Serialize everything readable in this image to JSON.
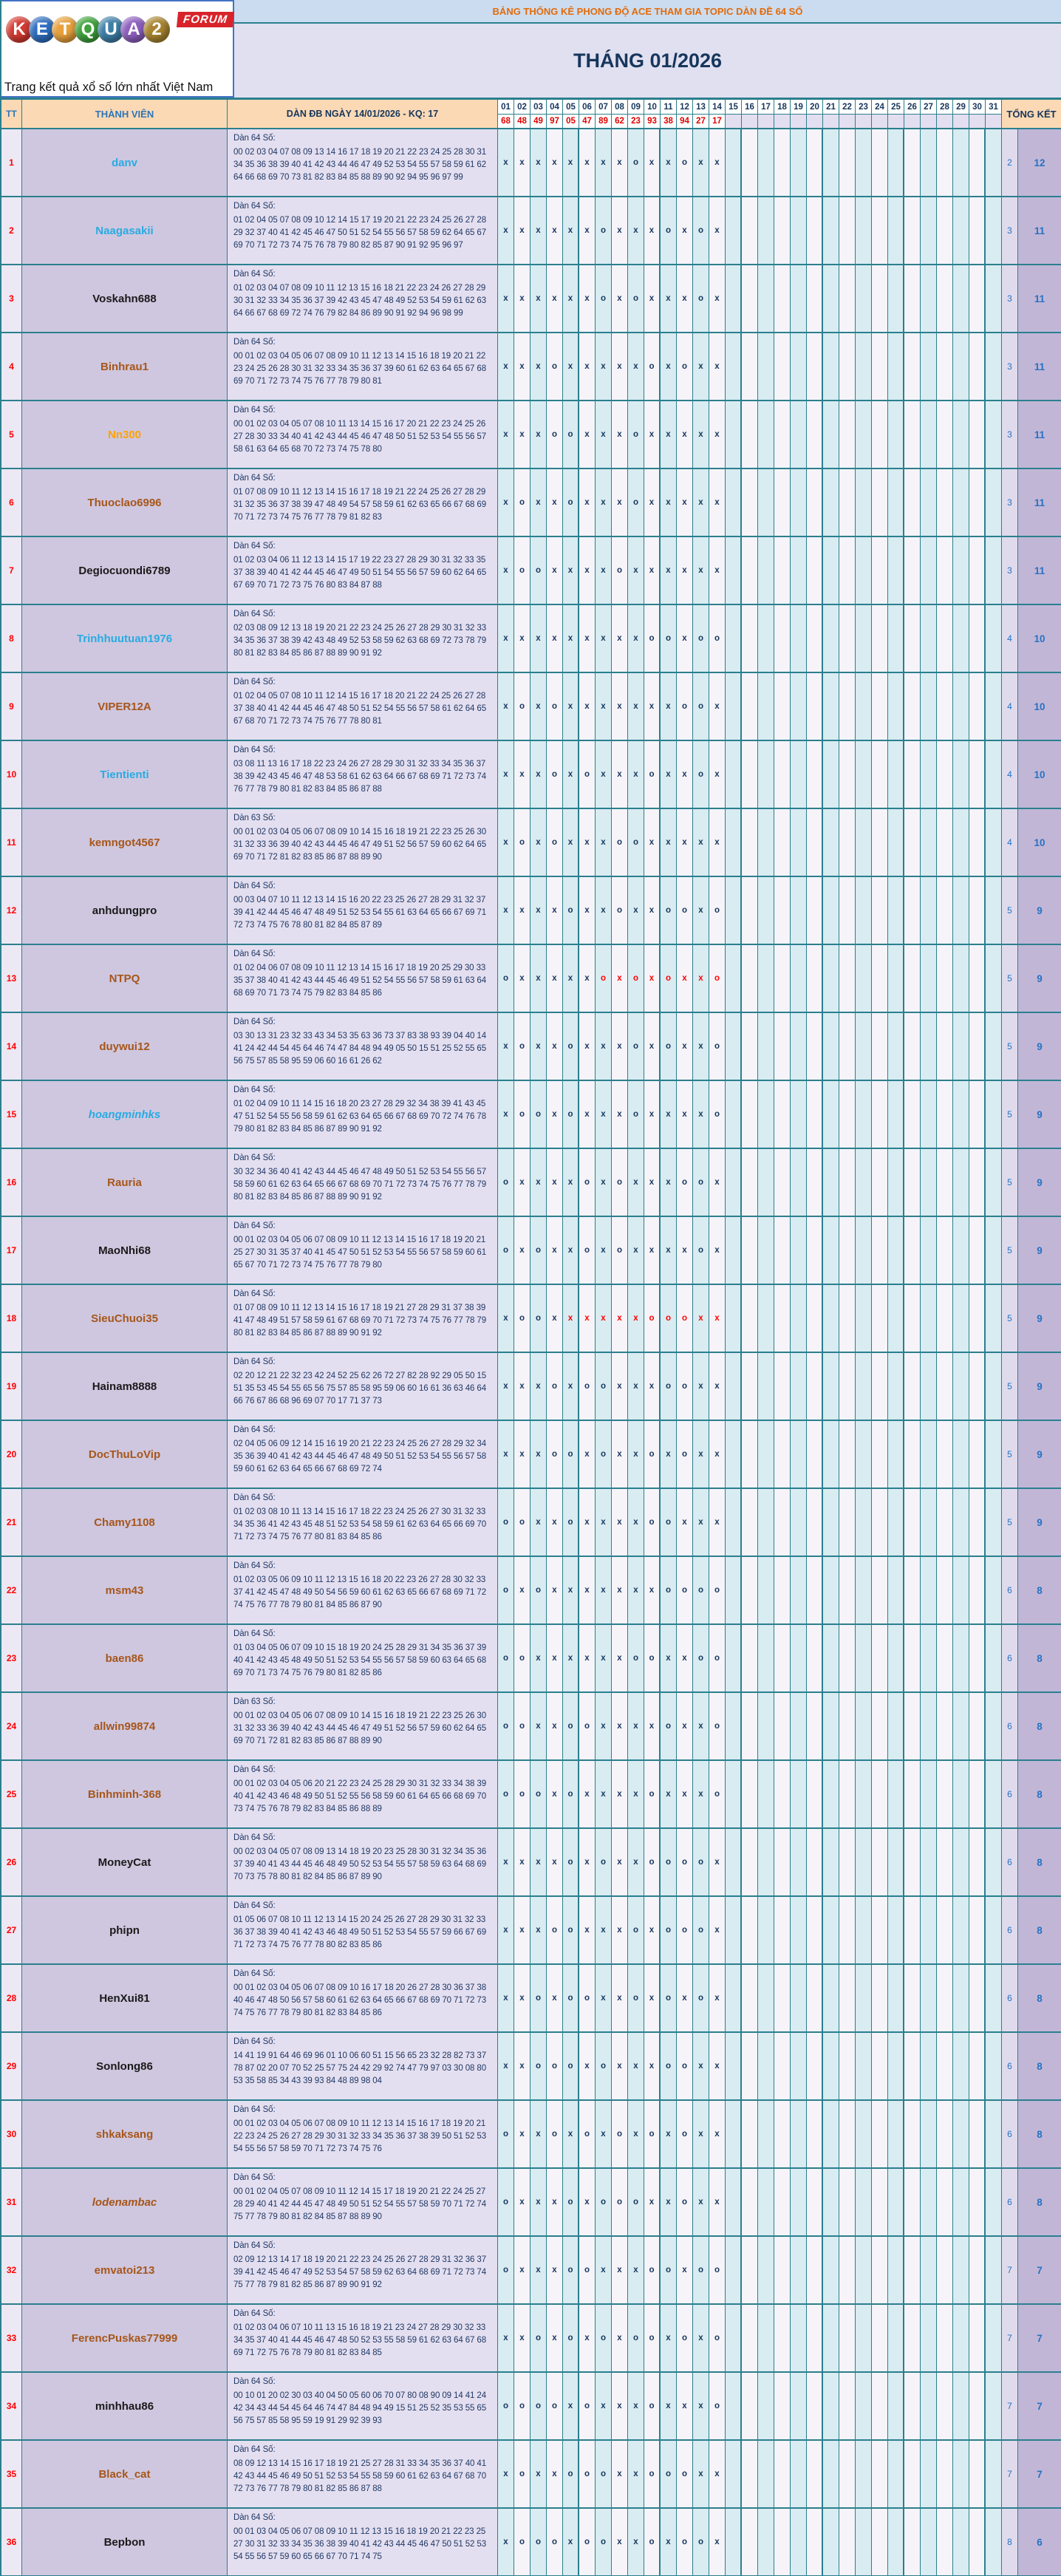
{
  "logo": {
    "badge": "FORUM",
    "tagline": "Trang kết quả xổ số lớn nhất Việt Nam",
    "letters": [
      {
        "ch": "K",
        "color": "#d63a31"
      },
      {
        "ch": "E",
        "color": "#2f6fbf"
      },
      {
        "ch": "T",
        "color": "#e8a13c"
      },
      {
        "ch": "Q",
        "color": "#3fa23c"
      },
      {
        "ch": "U",
        "color": "#3e7fa8"
      },
      {
        "ch": "A",
        "color": "#8e5fbf"
      },
      {
        "ch": "2",
        "color": "#a98530"
      }
    ]
  },
  "header": {
    "topic_title": "BẢNG THỐNG KÊ PHONG ĐỘ ACE THAM GIA TOPIC DÀN ĐỀ 64 SỐ",
    "month_title": "THÁNG 01/2026",
    "col_tt": "TT",
    "col_member": "THÀNH VIÊN",
    "col_dan": "DÀN ĐB NGÀY 14/01/2026 - KQ: 17",
    "col_total": "TỔNG KẾT",
    "days": [
      "01",
      "02",
      "03",
      "04",
      "05",
      "06",
      "07",
      "08",
      "09",
      "10",
      "11",
      "12",
      "13",
      "14",
      "15",
      "16",
      "17",
      "18",
      "19",
      "20",
      "21",
      "22",
      "23",
      "24",
      "25",
      "26",
      "27",
      "28",
      "29",
      "30",
      "31"
    ],
    "results": [
      "68",
      "48",
      "49",
      "97",
      "05",
      "47",
      "89",
      "62",
      "23",
      "93",
      "38",
      "94",
      "27",
      "17"
    ]
  },
  "colors": {
    "border_teal": "#2b7f8e",
    "peach": "#fbd9b5",
    "mark_navy": "#17365d",
    "mark_red": "#ff0000",
    "result_red": "#e00000"
  },
  "members": [
    {
      "tt": "1",
      "name": "danv",
      "color": "cyan",
      "italic": false,
      "label": "Dàn 64 Số:",
      "numbers": "00 02 03 04 07 08 09 13 14 16 17 18 19 20 21 22 23 24 25 28 30 31 34 35 36 38 39 40 41 42 43 44 46 47 49 52 53 54 55 57 58 59 61 62 64 66 68 69 70 73 81 82 83 84 85 88 89 90 92 94 95 96 97 99",
      "marks": "xxxxxxxxoxxoxx",
      "red_from": 0,
      "miss": "2",
      "hit": "12"
    },
    {
      "tt": "2",
      "name": "Naagasakii",
      "color": "cyan",
      "italic": false,
      "label": "Dàn 64 Số:",
      "numbers": "01 02 04 05 07 08 09 10 12 14 15 17 19 20 21 22 23 24 25 26 27 28 29 32 37 40 41 42 45 46 47 50 51 52 54 55 56 57 58 59 62 64 65 67 69 70 71 72 73 74 75 76 78 79 80 82 85 87 90 91 92 95 96 97",
      "marks": "xxxxxxoxxxoxox",
      "red_from": 0,
      "miss": "3",
      "hit": "11"
    },
    {
      "tt": "3",
      "name": "Voskahn688",
      "color": "black",
      "italic": false,
      "label": "Dàn 64 Số:",
      "numbers": "01 02 03 04 07 08 09 10 11 12 13 15 16 18 21 22 23 24 26 27 28 29 30 31 32 33 34 35 36 37 39 42 43 45 47 48 49 52 53 54 59 61 62 63 64 66 67 68 69 72 74 76 79 82 84 86 89 90 91 92 94 96 98 99",
      "marks": "xxxxxxoxoxxxox",
      "red_from": 0,
      "miss": "3",
      "hit": "11"
    },
    {
      "tt": "4",
      "name": "Binhrau1",
      "color": "brown",
      "italic": false,
      "label": "Dàn 64 Số:",
      "numbers": "00 01 02 03 04 05 06 07 08 09 10 11 12 13 14 15 16 18 19 20 21 22 23 24 25 26 28 30 31 32 33 34 35 36 37 39 60 61 62 63 64 65 67 68 69 70 71 72 73 74 75 76 77 78 79 80 81",
      "marks": "xxxoxxxxxoxoxx",
      "red_from": 0,
      "miss": "3",
      "hit": "11"
    },
    {
      "tt": "5",
      "name": "Nn300",
      "color": "orange",
      "italic": false,
      "label": "Dàn 64 Số:",
      "numbers": "00 01 02 03 04 05 07 08 10 11 13 14 15 16 17 20 21 22 23 24 25 26 27 28 30 33 34 40 41 42 43 44 45 46 47 48 50 51 52 53 54 55 56 57 58 61 63 64 65 68 70 72 73 74 75 78 80",
      "marks": "xxxooxxxoxxxxx",
      "red_from": 0,
      "miss": "3",
      "hit": "11"
    },
    {
      "tt": "6",
      "name": "Thuoclao6996",
      "color": "brown",
      "italic": false,
      "label": "Dàn 64 Số:",
      "numbers": "01 07 08 09 10 11 12 13 14 15 16 17 18 19 21 22 24 25 26 27 28 29 31 32 35 36 37 38 39 47 48 49 54 57 58 59 61 62 63 65 66 67 68 69 70 71 72 73 74 75 76 77 78 79 81 82 83",
      "marks": "xoxxoxxxoxxxxx",
      "red_from": 0,
      "miss": "3",
      "hit": "11"
    },
    {
      "tt": "7",
      "name": "Degiocuondi6789",
      "color": "black",
      "italic": false,
      "label": "Dàn 64 Số:",
      "numbers": "01 02 03 04 06 11 12 13 14 15 17 19 22 23 27 28 29 30 31 32 33 35 37 38 39 40 41 42 44 45 46 47 49 50 51 54 55 56 57 59 60 62 64 65 67 69 70 71 72 73 75 76 80 83 84 87 88",
      "marks": "xooxxxxoxxxxxx",
      "red_from": 0,
      "miss": "3",
      "hit": "11"
    },
    {
      "tt": "8",
      "name": "Trinhhuutuan1976",
      "color": "cyan",
      "italic": false,
      "label": "Dàn 64 Số:",
      "numbers": "02 03 08 09 12 13 18 19 20 21 22 23 24 25 26 27 28 29 30 31 32 33 34 35 36 37 38 39 42 43 48 49 52 53 58 59 62 63 68 69 72 73 78 79 80 81 82 83 84 85 86 87 88 89 90 91 92",
      "marks": "xxxxxxxxxooxoo",
      "red_from": 0,
      "miss": "4",
      "hit": "10"
    },
    {
      "tt": "9",
      "name": "VIPER12A",
      "color": "brown",
      "italic": false,
      "label": "Dàn 64 Số:",
      "numbers": "01 02 04 05 07 08 10 11 12 14 15 16 17 18 20 21 22 24 25 26 27 28 37 38 40 41 42 44 45 46 47 48 50 51 52 54 55 56 57 58 61 62 64 65 67 68 70 71 72 73 74 75 76 77 78 80 81",
      "marks": "xoxoxxxxxxxoox",
      "red_from": 0,
      "miss": "4",
      "hit": "10"
    },
    {
      "tt": "10",
      "name": "Tientienti",
      "color": "cyan",
      "italic": false,
      "label": "Dàn 64 Số:",
      "numbers": "03 08 11 13 16 17 18 22 23 24 26 27 28 29 30 31 32 33 34 35 36 37 38 39 42 43 45 46 47 48 53 58 61 62 63 64 66 67 68 69 71 72 73 74 76 77 78 79 80 81 82 83 84 85 86 87 88",
      "marks": "xxxoxoxxxoxxox",
      "red_from": 0,
      "miss": "4",
      "hit": "10"
    },
    {
      "tt": "11",
      "name": "kemngot4567",
      "color": "brown",
      "italic": false,
      "label": "Dàn 63 Số:",
      "numbers": "00 01 02 03 04 05 06 07 08 09 10 14 15 16 18 19 21 22 23 25 26 30 31 32 33 36 39 40 42 43 44 45 46 47 49 51 52 56 57 59 60 62 64 65 69 70 71 72 81 82 83 85 86 87 88 89 90",
      "marks": "xoxoxxxooxxxxx",
      "red_from": 0,
      "miss": "4",
      "hit": "10"
    },
    {
      "tt": "12",
      "name": "anhdungpro",
      "color": "black",
      "italic": false,
      "label": "Dàn 64 Số:",
      "numbers": "00 03 04 07 10 11 12 13 14 15 16 20 22 23 25 26 27 28 29 31 32 37 39 41 42 44 45 46 47 48 49 51 52 53 54 55 61 63 64 65 66 67 69 71 72 73 74 75 76 78 80 81 82 84 85 87 89",
      "marks": "xxxxoxxoxxooxo",
      "red_from": 0,
      "miss": "5",
      "hit": "9"
    },
    {
      "tt": "13",
      "name": "NTPQ",
      "color": "brown",
      "italic": false,
      "label": "Dàn 64 Số:",
      "numbers": "01 02 04 06 07 08 09 10 11 12 13 14 15 16 17 18 19 20 25 29 30 33 35 37 38 40 41 42 43 44 45 46 49 51 52 54 55 56 57 58 59 61 63 64 68 69 70 71 73 74 75 79 82 83 84 85 86",
      "marks": "oxxxxxoxoxoxxo",
      "red_from": 7,
      "miss": "5",
      "hit": "9"
    },
    {
      "tt": "14",
      "name": "duywui12",
      "color": "brown",
      "italic": false,
      "label": "Dàn 64 Số:",
      "numbers": "03 30 13 31 23 32 33 43 34 53 35 63 36 73 37 83 38 93 39 04 40 14 41 24 42 44 54 45 64 46 74 47 84 48 94 49 05 50 15 51 25 52 55 65 56 75 57 85 58 95 59 06 60 16 61 26 62",
      "marks": "xoxxoxxxoxoxxo",
      "red_from": 0,
      "miss": "5",
      "hit": "9"
    },
    {
      "tt": "15",
      "name": "hoangminhks",
      "color": "cyan",
      "italic": true,
      "label": "Dàn 64 Số:",
      "numbers": "01 02 04 09 10 11 14 15 16 18 20 23 27 28 29 32 34 38 39 41 43 45 47 51 52 54 55 56 58 59 61 62 63 64 65 66 67 68 69 70 72 74 76 78 79 80 81 82 83 84 85 86 87 89 90 91 92",
      "marks": "xooxoxxxoxxxxo",
      "red_from": 0,
      "miss": "5",
      "hit": "9"
    },
    {
      "tt": "16",
      "name": "Rauria",
      "color": "brown",
      "italic": false,
      "label": "Dàn 64 Số:",
      "numbers": "30 32 34 36 40 41 42 43 44 45 46 47 48 49 50 51 52 53 54 55 56 57 58 59 60 61 62 63 64 65 66 67 68 69 70 71 72 73 74 75 76 77 78 79 80 81 82 83 84 85 86 87 88 89 90 91 92",
      "marks": "oxxxxoxoxxxoox",
      "red_from": 0,
      "miss": "5",
      "hit": "9"
    },
    {
      "tt": "17",
      "name": "MaoNhi68",
      "color": "black",
      "italic": false,
      "label": "Dàn 64 Số:",
      "numbers": "00 01 02 03 04 05 06 07 08 09 10 11 12 13 14 15 16 17 18 19 20 21 25 27 30 31 35 37 40 41 45 47 50 51 52 53 54 55 56 57 58 59 60 61 65 67 70 71 72 73 74 75 76 77 78 79 80",
      "marks": "oxoxxoxoxxxxox",
      "red_from": 0,
      "miss": "5",
      "hit": "9"
    },
    {
      "tt": "18",
      "name": "SieuChuoi35",
      "color": "brown",
      "italic": false,
      "label": "Dàn 64 Số:",
      "numbers": "01 07 08 09 10 11 12 13 14 15 16 17 18 19 21 27 28 29 31 37 38 39 41 47 48 49 51 57 58 59 61 67 68 69 70 71 72 73 74 75 76 77 78 79 80 81 82 83 84 85 86 87 88 89 90 91 92",
      "marks": "xooxxxxxxoooxx",
      "red_from": 5,
      "miss": "5",
      "hit": "9"
    },
    {
      "tt": "19",
      "name": "Hainam8888",
      "color": "black",
      "italic": false,
      "label": "Dàn 64 Số:",
      "numbers": "02 20 12 21 22 32 23 42 24 52 25 62 26 72 27 82 28 92 29 05 50 15 51 35 53 45 54 55 65 56 75 57 85 58 95 59 06 60 16 61 36 63 46 64 66 76 67 86 68 96 69 07 70 17 71 37 73",
      "marks": "xxxoxooxxxooxx",
      "red_from": 0,
      "miss": "5",
      "hit": "9"
    },
    {
      "tt": "20",
      "name": "DocThuLoVip",
      "color": "brown",
      "italic": false,
      "label": "Dàn 64 Số:",
      "numbers": "02 04 05 06 09 12 14 15 16 19 20 21 22 23 24 25 26 27 28 29 32 34 35 36 39 40 41 42 43 44 45 46 47 48 49 50 51 52 53 54 55 56 57 58 59 60 61 62 63 64 65 66 67 68 69 72 74",
      "marks": "xxxooxoxxoxoxx",
      "red_from": 0,
      "miss": "5",
      "hit": "9"
    },
    {
      "tt": "21",
      "name": "Chamy1108",
      "color": "brown",
      "italic": false,
      "label": "Dàn 64 Số:",
      "numbers": "01 02 03 08 10 11 13 14 15 16 17 18 22 23 24 25 26 27 30 31 32 33 34 35 36 41 42 43 45 48 51 52 53 54 58 59 61 62 63 64 65 66 69 70 71 72 73 74 75 76 77 80 81 83 84 85 86",
      "marks": "ooxxoxxxxooxxx",
      "red_from": 0,
      "miss": "5",
      "hit": "9"
    },
    {
      "tt": "22",
      "name": "msm43",
      "color": "brown",
      "italic": false,
      "label": "Dàn 64 Số:",
      "numbers": "01 02 03 05 06 09 10 11 12 13 15 16 18 20 22 23 26 27 28 30 32 33 37 41 42 45 47 48 49 50 54 56 59 60 61 62 63 65 66 67 68 69 71 72 74 75 76 77 78 79 80 81 84 85 86 87 90",
      "marks": "oxoxxxxxxxoooo",
      "red_from": 0,
      "miss": "6",
      "hit": "8"
    },
    {
      "tt": "23",
      "name": "baen86",
      "color": "brown",
      "italic": false,
      "label": "Dàn 64 Số:",
      "numbers": "01 03 04 05 06 07 09 10 15 18 19 20 24 25 28 29 31 34 35 36 37 39 40 41 42 43 45 48 49 50 51 52 53 54 55 56 57 58 59 60 63 64 65 68 69 70 71 73 74 75 76 79 80 81 82 85 86",
      "marks": "ooxxxxxxooxxoo",
      "red_from": 0,
      "miss": "6",
      "hit": "8"
    },
    {
      "tt": "24",
      "name": "allwin99874",
      "color": "brown",
      "italic": false,
      "label": "Dàn 63 Số:",
      "numbers": "00 01 02 03 04 05 06 07 08 09 10 14 15 16 18 19 21 22 23 25 26 30 31 32 33 36 39 40 42 43 44 45 46 47 49 51 52 56 57 59 60 62 64 65 69 70 71 72 81 82 83 85 86 87 88 89 90",
      "marks": "ooxxooxxxxoxxo",
      "red_from": 0,
      "miss": "6",
      "hit": "8"
    },
    {
      "tt": "25",
      "name": "Binhminh-368",
      "color": "brown",
      "italic": false,
      "label": "Dàn 64 Số:",
      "numbers": "00 01 02 03 04 05 06 20 21 22 23 24 25 28 29 30 31 32 33 34 38 39 40 41 42 43 46 48 49 50 51 52 55 56 58 59 60 61 64 65 66 68 69 70 73 74 75 76 78 79 82 83 84 85 86 88 89",
      "marks": "oooxoxxxxoxxxo",
      "red_from": 0,
      "miss": "6",
      "hit": "8"
    },
    {
      "tt": "26",
      "name": "MoneyCat",
      "color": "black",
      "italic": false,
      "label": "Dàn 64 Số:",
      "numbers": "00 02 03 04 05 07 08 09 13 14 18 19 20 23 25 28 30 31 32 34 35 36 37 39 40 41 43 44 45 46 48 49 50 52 53 54 55 57 58 59 63 64 68 69 70 73 75 78 80 81 82 84 85 86 87 89 90",
      "marks": "xxxxoxoxxoooox",
      "red_from": 0,
      "miss": "6",
      "hit": "8"
    },
    {
      "tt": "27",
      "name": "phipn",
      "color": "black",
      "italic": false,
      "label": "Dàn 64 Số:",
      "numbers": "01 05 06 07 08 10 11 12 13 14 15 20 24 25 26 27 28 29 30 31 32 33 36 37 38 39 40 41 42 43 46 48 49 50 51 52 53 54 55 57 59 66 67 69 71 72 73 74 75 76 77 78 80 82 83 85 86",
      "marks": "xxxooxxxoxooox",
      "red_from": 0,
      "miss": "6",
      "hit": "8"
    },
    {
      "tt": "28",
      "name": "HenXui81",
      "color": "black",
      "italic": false,
      "label": "Dàn 64 Số:",
      "numbers": "00 01 02 03 04 05 06 07 08 09 10 16 17 18 20 26 27 28 30 36 37 38 40 46 47 48 50 56 57 58 60 61 62 63 64 65 66 67 68 69 70 71 72 73 74 75 76 77 78 79 80 81 82 83 84 85 86",
      "marks": "xxoxooxxoxoxox",
      "red_from": 0,
      "miss": "6",
      "hit": "8"
    },
    {
      "tt": "29",
      "name": "Sonlong86",
      "color": "black",
      "italic": false,
      "label": "Dàn 64 Số:",
      "numbers": "14 41 19 91 64 46 69 96 01 10 06 60 51 15 56 65 23 32 28 82 73 37 78 87 02 20 07 70 52 25 57 75 24 42 29 92 74 47 79 97 03 30 08 80 53 35 58 85 34 43 39 93 84 48 89 98 04",
      "marks": "xxoooxoxxxooxx",
      "red_from": 0,
      "miss": "6",
      "hit": "8"
    },
    {
      "tt": "30",
      "name": "shkaksang",
      "color": "brown",
      "italic": false,
      "label": "Dàn 64 Số:",
      "numbers": "00 01 02 03 04 05 06 07 08 09 10 11 12 13 14 15 16 17 18 19 20 21 22 23 24 25 26 27 28 29 30 31 32 33 34 35 36 37 38 39 50 51 52 53 54 55 56 57 58 59 70 71 72 73 74 75 76",
      "marks": "oxxoxoxoxoxoxx",
      "red_from": 0,
      "miss": "6",
      "hit": "8"
    },
    {
      "tt": "31",
      "name": "lodenambac",
      "color": "brown",
      "italic": true,
      "label": "Dàn 64 Số:",
      "numbers": "00 01 02 04 05 07 08 09 10 11 12 14 15 17 18 19 20 21 22 24 25 27 28 29 40 41 42 44 45 47 48 49 50 51 52 54 55 57 58 59 70 71 72 74 75 77 78 79 80 81 82 84 85 87 88 89 90",
      "marks": "oxxxoxoooxxoxx",
      "red_from": 0,
      "miss": "6",
      "hit": "8"
    },
    {
      "tt": "32",
      "name": "emvatoi213",
      "color": "brown",
      "italic": false,
      "label": "Dàn 64 Số:",
      "numbers": "02 09 12 13 14 17 18 19 20 21 22 23 24 25 26 27 28 29 31 32 36 37 39 41 42 45 46 47 49 52 53 54 57 58 59 62 63 64 68 69 71 72 73 74 75 77 78 79 81 82 85 86 87 89 90 91 92",
      "marks": "oxxxooxxxooxoo",
      "red_from": 0,
      "miss": "7",
      "hit": "7"
    },
    {
      "tt": "33",
      "name": "FerencPuskas77999",
      "color": "brown",
      "italic": false,
      "label": "Dàn 64 Số:",
      "numbers": "01 02 03 04 06 07 10 11 13 15 16 18 19 21 23 24 27 28 29 30 32 33 34 35 37 40 41 44 45 46 47 48 50 52 53 55 58 59 61 62 63 64 67 68 69 71 72 75 76 78 79 80 81 82 83 84 85",
      "marks": "xxoxoxoxooxoxo",
      "red_from": 0,
      "miss": "7",
      "hit": "7"
    },
    {
      "tt": "34",
      "name": "minhhau86",
      "color": "black",
      "italic": false,
      "label": "Dàn 64 Số:",
      "numbers": "00 10 01 20 02 30 03 40 04 50 05 60 06 70 07 80 08 90 09 14 41 24 42 34 43 44 54 45 64 46 74 47 84 48 94 49 15 51 25 52 35 53 55 65 56 75 57 85 58 95 59 19 91 29 92 39 93",
      "marks": "ooooxoxxxoxxxo",
      "red_from": 0,
      "miss": "7",
      "hit": "7"
    },
    {
      "tt": "35",
      "name": "Black_cat",
      "color": "brown",
      "italic": false,
      "label": "Dàn 64 Số:",
      "numbers": "08 09 12 13 14 15 16 17 18 19 21 25 27 28 31 33 34 35 36 37 40 41 42 43 44 45 46 49 50 51 52 53 54 55 58 59 60 61 62 63 64 67 68 70 72 73 76 77 78 79 80 81 82 85 86 87 88",
      "marks": "xoxxoooxxoooxx",
      "red_from": 0,
      "miss": "7",
      "hit": "7"
    },
    {
      "tt": "36",
      "name": "Bepbon",
      "color": "black",
      "italic": false,
      "label": "Dàn 64 Số:",
      "numbers": "00 01 03 04 05 06 07 08 09 10 11 12 13 15 16 18 19 20 21 22 23 25 27 30 31 32 33 34 35 36 38 39 40 41 42 43 44 45 46 47 50 51 52 53 54 55 56 57 59 60 65 66 67 70 71 74 75",
      "marks": "xoooxooxxoxoox",
      "red_from": 0,
      "miss": "8",
      "hit": "6"
    }
  ]
}
